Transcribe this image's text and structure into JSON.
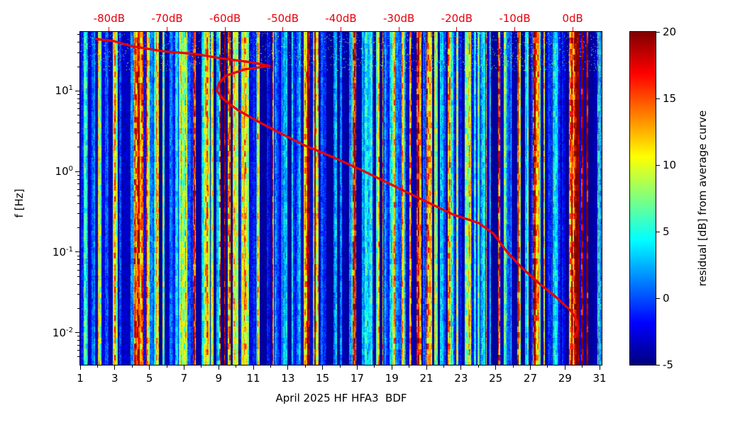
{
  "figure": {
    "background": "#ffffff",
    "accent_red": "#e8000b"
  },
  "chart_data": {
    "type": "heatmap",
    "title": "",
    "xlabel": "April 2025 HF HFA3  BDF",
    "ylabel": "f [Hz]",
    "x_axis": {
      "min": 1,
      "max": 31.12,
      "ticks": [
        1,
        3,
        5,
        7,
        9,
        11,
        13,
        15,
        17,
        19,
        21,
        23,
        25,
        27,
        29,
        31
      ],
      "minor_ticks": [
        2,
        4,
        6,
        8,
        10,
        12,
        14,
        16,
        18,
        20,
        22,
        24,
        26,
        28,
        30
      ]
    },
    "y_axis": {
      "scale": "log",
      "min": 0.004,
      "max": 54,
      "tick_exponents": [
        1,
        0,
        -1,
        -2
      ]
    },
    "top_axis": {
      "min": -85,
      "max": 5,
      "ticks": [
        -80,
        -70,
        -60,
        -50,
        -40,
        -30,
        -20,
        -10,
        0
      ],
      "labels": [
        "-80dB",
        "-70dB",
        "-60dB",
        "-50dB",
        "-40dB",
        "-30dB",
        "-20dB",
        "-10dB",
        "0dB"
      ],
      "color": "#e8000b"
    },
    "colorbar": {
      "label": "residual [dB] from average curve",
      "min": -5,
      "max": 20,
      "ticks": [
        -5,
        0,
        5,
        10,
        15,
        20
      ],
      "colormap": "jet"
    },
    "average_curve": {
      "color": "#e8000b",
      "units": "[dB, Hz]",
      "points_db_hz": [
        [
          -82.3,
          44
        ],
        [
          -79.2,
          41.5
        ],
        [
          -76.2,
          36
        ],
        [
          -70.7,
          31
        ],
        [
          -65.2,
          28.8
        ],
        [
          -60.9,
          25.5
        ],
        [
          -55.4,
          22.6
        ],
        [
          -52.3,
          20.4
        ],
        [
          -56.6,
          18.5
        ],
        [
          -59.9,
          15.4
        ],
        [
          -61.1,
          12.3
        ],
        [
          -61.4,
          10.0
        ],
        [
          -60.3,
          7.9
        ],
        [
          -57.8,
          5.8
        ],
        [
          -54.1,
          4.1
        ],
        [
          -50.5,
          3.0
        ],
        [
          -46.2,
          2.1
        ],
        [
          -41.3,
          1.5
        ],
        [
          -36.4,
          1.04
        ],
        [
          -31.5,
          0.7
        ],
        [
          -26.6,
          0.47
        ],
        [
          -20.5,
          0.29
        ],
        [
          -16.2,
          0.23
        ],
        [
          -13.7,
          0.17
        ],
        [
          -11.3,
          0.1
        ],
        [
          -8.8,
          0.064
        ],
        [
          -5.8,
          0.041
        ],
        [
          -2.7,
          0.027
        ],
        [
          -0.3,
          0.0187
        ],
        [
          0.8,
          0.014
        ],
        [
          0.9,
          0.011
        ],
        [
          0.3,
          0.0089
        ]
      ]
    },
    "heatmap": {
      "colormap": "jet",
      "value_range": [
        -5,
        20
      ],
      "seed": 20250401,
      "events": [
        {
          "c": 1.15,
          "w": 0.25,
          "s": 0.75
        },
        {
          "c": 2.0,
          "w": 0.3,
          "s": 0.55
        },
        {
          "c": 3.0,
          "w": 0.25,
          "s": 0.5
        },
        {
          "c": 3.7,
          "w": 0.35,
          "s": 0.85
        },
        {
          "c": 4.8,
          "w": 1.1,
          "s": 0.95
        },
        {
          "c": 6.2,
          "w": 0.3,
          "s": 0.6
        },
        {
          "c": 7.2,
          "w": 0.7,
          "s": 0.9
        },
        {
          "c": 8.3,
          "w": 0.25,
          "s": 0.6
        },
        {
          "c": 9.7,
          "w": 1.3,
          "s": 1.0
        },
        {
          "c": 11.2,
          "w": 0.35,
          "s": 0.65
        },
        {
          "c": 12.1,
          "w": 0.4,
          "s": 0.7
        },
        {
          "c": 13.2,
          "w": 0.3,
          "s": 0.6
        },
        {
          "c": 14.4,
          "w": 1.0,
          "s": 0.95
        },
        {
          "c": 15.8,
          "w": 0.3,
          "s": 0.6
        },
        {
          "c": 16.9,
          "w": 0.45,
          "s": 0.8
        },
        {
          "c": 18.4,
          "w": 0.4,
          "s": 0.6
        },
        {
          "c": 19.4,
          "w": 0.4,
          "s": 0.75
        },
        {
          "c": 20.6,
          "w": 1.3,
          "s": 0.9
        },
        {
          "c": 22.3,
          "w": 0.4,
          "s": 0.6
        },
        {
          "c": 23.3,
          "w": 0.45,
          "s": 0.65
        },
        {
          "c": 24.3,
          "w": 0.3,
          "s": 0.55
        },
        {
          "c": 25.2,
          "w": 0.5,
          "s": 0.8
        },
        {
          "c": 26.3,
          "w": 0.3,
          "s": 0.6
        },
        {
          "c": 27.5,
          "w": 1.0,
          "s": 0.95
        },
        {
          "c": 28.6,
          "w": 0.3,
          "s": 0.55
        },
        {
          "c": 29.9,
          "w": 1.3,
          "s": 0.95
        },
        {
          "c": 31.0,
          "w": 0.4,
          "s": 0.8
        }
      ]
    }
  }
}
